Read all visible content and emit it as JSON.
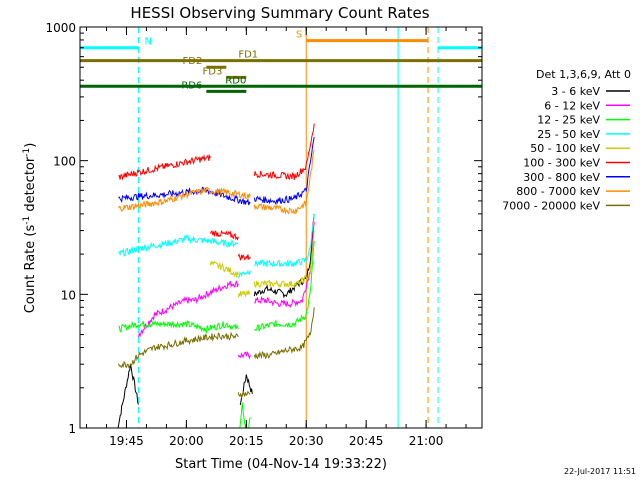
{
  "chart_data": {
    "type": "line",
    "title": "HESSI Observing Summary Count Rates",
    "xlabel": "Start Time (04-Nov-14 19:33:22)",
    "ylabel_main": "Count Rate (s",
    "ylabel_sup1": "-1",
    "ylabel_mid": " detector",
    "ylabel_sup2": "-1",
    "ylabel_end": ")",
    "yscale": "log",
    "ylim": [
      1,
      1000
    ],
    "xlim": [
      "19:33:22",
      "21:14:00"
    ],
    "y_ticks": [
      "1",
      "10",
      "100",
      "1000"
    ],
    "x_ticks": [
      "19:45",
      "20:00",
      "20:15",
      "20:30",
      "20:45",
      "21:00"
    ],
    "timestamp": "22-Jul-2017 11:51",
    "legend_header": "Det 1,3,6,9, Att 0",
    "legend_position": "right",
    "colors": {
      "c1": "#000000",
      "c2": "#ff00ff",
      "c3": "#00ff00",
      "c4": "#00ffff",
      "c5": "#cccc00",
      "c6": "#ff0000",
      "c7": "#0000ff",
      "c8": "#ff8c00",
      "c9": "#7a6f00"
    },
    "series": [
      {
        "name": "3 - 6 keV",
        "color": "#000000",
        "segments": [
          {
            "t": [
              "19:42:30",
              "19:44:00",
              "19:46:00",
              "19:48:00"
            ],
            "v": [
              0.9,
              1.5,
              3.0,
              1.5
            ]
          },
          {
            "t": [
              "20:13:30",
              "20:15:00",
              "20:16:30"
            ],
            "v": [
              1.5,
              2.5,
              1.8
            ]
          },
          {
            "t": [
              "20:17:00",
              "20:20:00",
              "20:25:00",
              "20:28:00",
              "20:30:00",
              "20:31:00",
              "20:32:00"
            ],
            "v": [
              10,
              11,
              10,
              12,
              13,
              18,
              40
            ]
          }
        ]
      },
      {
        "name": "6 - 12 keV",
        "color": "#ff00ff",
        "segments": [
          {
            "t": [
              "19:48:00",
              "19:52:00",
              "19:56:00",
              "20:00:00",
              "20:02:00",
              "20:05:00",
              "20:08:00",
              "20:11:00",
              "20:13:00"
            ],
            "v": [
              5,
              7,
              8,
              9,
              9,
              10,
              11,
              12,
              12
            ]
          },
          {
            "t": [
              "20:13:00",
              "20:16:00"
            ],
            "v": [
              3.5,
              3.5
            ]
          },
          {
            "t": [
              "20:17:00",
              "20:20:00",
              "20:23:00",
              "20:26:00",
              "20:29:00",
              "20:31:00",
              "20:32:00"
            ],
            "v": [
              9,
              9,
              8.5,
              8.5,
              9,
              15,
              35
            ]
          }
        ]
      },
      {
        "name": "12 - 25 keV",
        "color": "#00ff00",
        "segments": [
          {
            "t": [
              "19:43:00",
              "19:48:00",
              "19:55:00",
              "20:00:00",
              "20:05:00",
              "20:10:00",
              "20:13:00"
            ],
            "v": [
              5.5,
              6,
              6,
              6,
              5.5,
              6,
              5.5
            ]
          },
          {
            "t": [
              "20:13:00",
              "20:14:00",
              "20:15:00",
              "20:16:00"
            ],
            "v": [
              0.8,
              1.5,
              0.8,
              1.2
            ]
          },
          {
            "t": [
              "20:17:00",
              "20:22:00",
              "20:27:00",
              "20:30:00",
              "20:31:00",
              "20:32:00"
            ],
            "v": [
              5.5,
              6,
              6,
              7,
              10,
              25
            ]
          }
        ]
      },
      {
        "name": "25 - 50 keV",
        "color": "#00ffff",
        "segments": [
          {
            "t": [
              "19:43:00",
              "19:48:00",
              "19:55:00",
              "20:00:00",
              "20:06:00",
              "20:10:00",
              "20:13:00"
            ],
            "v": [
              20,
              22,
              24,
              26,
              25,
              24,
              24
            ]
          },
          {
            "t": [
              "20:13:00",
              "20:16:00"
            ],
            "v": [
              14,
              15
            ]
          },
          {
            "t": [
              "20:17:00",
              "20:22:00",
              "20:27:00",
              "20:30:00",
              "20:31:00",
              "20:32:00"
            ],
            "v": [
              17,
              17,
              17,
              18,
              22,
              40
            ]
          }
        ]
      },
      {
        "name": "50 - 100 keV",
        "color": "#cccc00",
        "segments": [
          {
            "t": [
              "20:06:00",
              "20:09:00",
              "20:13:00"
            ],
            "v": [
              17,
              16,
              14
            ]
          },
          {
            "t": [
              "20:13:00",
              "20:16:00"
            ],
            "v": [
              10,
              10
            ]
          },
          {
            "t": [
              "20:17:00",
              "20:22:00",
              "20:28:00",
              "20:31:00",
              "20:32:00"
            ],
            "v": [
              12,
              12,
              12,
              14,
              30
            ]
          }
        ]
      },
      {
        "name": "100 - 300 keV",
        "color": "#ff0000",
        "segments": [
          {
            "t": [
              "19:43:00",
              "19:48:00",
              "19:53:00",
              "19:58:00",
              "20:03:00",
              "20:06:00"
            ],
            "v": [
              75,
              82,
              88,
              95,
              102,
              105
            ]
          },
          {
            "t": [
              "20:06:00",
              "20:10:00",
              "20:13:00"
            ],
            "v": [
              29,
              28,
              27
            ]
          },
          {
            "t": [
              "20:13:00",
              "20:16:00"
            ],
            "v": [
              19,
              19
            ]
          },
          {
            "t": [
              "20:17:00",
              "20:22:00",
              "20:27:00",
              "20:30:00",
              "20:31:00",
              "20:32:00"
            ],
            "v": [
              80,
              78,
              76,
              90,
              130,
              190
            ]
          }
        ]
      },
      {
        "name": "300 - 800 keV",
        "color": "#0000ff",
        "segments": [
          {
            "t": [
              "19:43:00",
              "19:48:00",
              "19:55:00",
              "20:00:00",
              "20:05:00",
              "20:10:00",
              "20:16:00"
            ],
            "v": [
              52,
              54,
              56,
              58,
              60,
              54,
              48
            ]
          },
          {
            "t": [
              "20:17:00",
              "20:22:00",
              "20:27:00",
              "20:30:00",
              "20:31:00",
              "20:32:00"
            ],
            "v": [
              52,
              50,
              52,
              60,
              95,
              150
            ]
          }
        ]
      },
      {
        "name": "800 - 7000 keV",
        "color": "#ff8c00",
        "segments": [
          {
            "t": [
              "19:43:00",
              "19:48:00",
              "19:55:00",
              "20:00:00",
              "20:05:00",
              "20:10:00",
              "20:16:00"
            ],
            "v": [
              44,
              46,
              50,
              56,
              60,
              58,
              54
            ]
          },
          {
            "t": [
              "20:17:00",
              "20:22:00",
              "20:27:00",
              "20:30:00",
              "20:31:00",
              "20:32:00"
            ],
            "v": [
              46,
              44,
              42,
              48,
              75,
              120
            ]
          }
        ]
      },
      {
        "name": "7000 - 20000 keV",
        "color": "#7a6f00",
        "segments": [
          {
            "t": [
              "19:43:00",
              "19:46:00",
              "19:48:00",
              "19:52:00",
              "19:56:00",
              "20:00:00",
              "20:04:00",
              "20:08:00",
              "20:13:00"
            ],
            "v": [
              3,
              3,
              3.5,
              4,
              4.2,
              4.5,
              4.7,
              4.9,
              4.8
            ]
          },
          {
            "t": [
              "20:13:00",
              "20:16:00"
            ],
            "v": [
              1.8,
              1.8
            ]
          },
          {
            "t": [
              "20:17:00",
              "20:21:00",
              "20:25:00",
              "20:29:00",
              "20:31:00",
              "20:32:00"
            ],
            "v": [
              3.5,
              3.5,
              3.8,
              4.0,
              5,
              8
            ]
          }
        ]
      }
    ],
    "flag_bars": [
      {
        "name": "N",
        "color": "#00ffff",
        "y": 700,
        "t0": "19:33:22",
        "t1": "19:48:00",
        "label_at": "19:49:30"
      },
      {
        "name": "",
        "color": "#00ffff",
        "y": 700,
        "t0": "21:03:00",
        "t1": "21:14:00"
      },
      {
        "name": "S",
        "color": "#ff8c00",
        "y": 790,
        "t0": "20:30:00",
        "t1": "21:00:30",
        "label_at": "20:29:00",
        "label_anchor": "end"
      },
      {
        "name": "FD1",
        "color": "#7a6f00",
        "y": 560,
        "t0": "19:33:22",
        "t1": "21:14:00",
        "label_at": "20:13:00"
      },
      {
        "name": "FD2",
        "color": "#7a6f00",
        "y": 500,
        "t0": "20:05:00",
        "t1": "20:10:00",
        "label_at": "20:04:00",
        "label_anchor": "end"
      },
      {
        "name": "FD3",
        "color": "#7a6f00",
        "y": 420,
        "t0": "20:10:00",
        "t1": "20:15:00",
        "label_at": "20:09:00",
        "label_anchor": "end"
      },
      {
        "name": "RD0",
        "color": "#006400",
        "y": 360,
        "t0": "19:33:22",
        "t1": "21:14:00",
        "label_at": "20:15:00",
        "label_anchor": "end"
      },
      {
        "name": "RD6",
        "color": "#006400",
        "y": 330,
        "t0": "20:05:00",
        "t1": "20:15:00",
        "label_at": "20:04:00",
        "label_anchor": "end"
      }
    ],
    "vlines": [
      {
        "t": "19:48:00",
        "color": "#00ffff",
        "dash": true
      },
      {
        "t": "20:30:00",
        "color": "#ff8c00",
        "dash": false
      },
      {
        "t": "21:00:30",
        "color": "#ff8c00",
        "dash": true
      },
      {
        "t": "20:53:00",
        "color": "#00ffff",
        "dash": false
      },
      {
        "t": "21:03:00",
        "color": "#00ffff",
        "dash": true
      }
    ]
  }
}
